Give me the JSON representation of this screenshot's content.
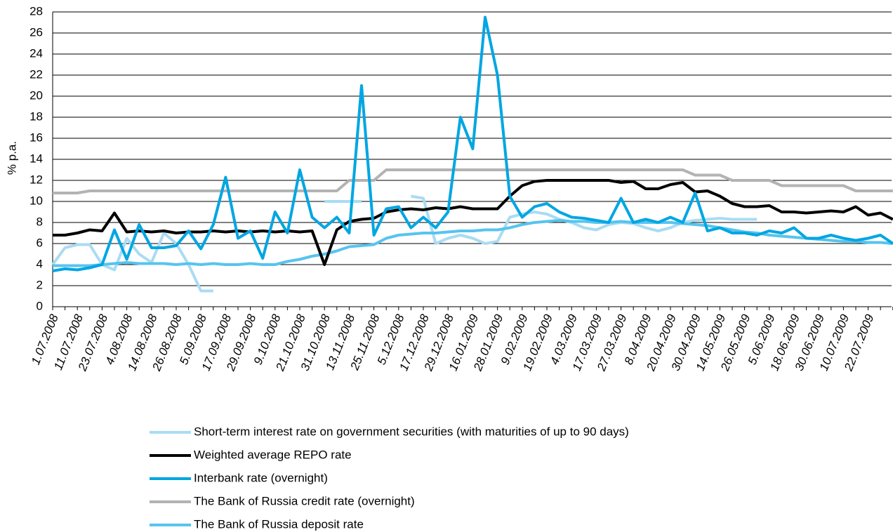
{
  "chart_data": {
    "type": "line",
    "y_label": "% p.a.",
    "categories": [
      "1.07.2008",
      null,
      "11.07.2008",
      null,
      "23.07.2008",
      null,
      "4.08.2008",
      null,
      "14.08.2008",
      null,
      "26.08.2008",
      null,
      "5.09.2008",
      null,
      "17.09.2008",
      null,
      "29.09.2008",
      null,
      "9.10.2008",
      null,
      "21.10.2008",
      null,
      "31.10.2008",
      null,
      "13.11.2008",
      null,
      "25.11.2008",
      null,
      "5.12.2008",
      null,
      "17.12.2008",
      null,
      "29.12.2008",
      null,
      "16.01.2009",
      null,
      "28.01.2009",
      null,
      "9.02.2009",
      null,
      "19.02.2009",
      null,
      "4.03.2009",
      null,
      "17.03.2009",
      null,
      "27.03.2009",
      null,
      "8.04.2009",
      null,
      "20.04.2009",
      null,
      "30.04.2009",
      null,
      "14.05.2009",
      null,
      "26.05.2009",
      null,
      "5.06.2009",
      null,
      "18.06.2009",
      null,
      "30.06.2009",
      null,
      "10.07.2009",
      null,
      "22.07.2009",
      null,
      null
    ],
    "ylim": [
      0,
      28
    ],
    "yticks": [
      0,
      2,
      4,
      6,
      8,
      10,
      12,
      14,
      16,
      18,
      20,
      22,
      24,
      26,
      28
    ],
    "grid": true,
    "series": [
      {
        "name": "Short-term interest rate on government securities (with maturities of up to 90 days)",
        "color": "#a9dcf3",
        "values": [
          4.0,
          5.6,
          5.9,
          5.9,
          4.0,
          3.5,
          6.5,
          5.0,
          4.2,
          7.0,
          6.0,
          4.0,
          1.5,
          1.5,
          null,
          null,
          null,
          null,
          null,
          null,
          null,
          null,
          10.0,
          10.0,
          10.0,
          10.0,
          null,
          null,
          null,
          10.5,
          10.3,
          6.0,
          6.5,
          6.8,
          6.5,
          6.0,
          6.2,
          8.5,
          8.8,
          9.0,
          8.8,
          8.3,
          8.0,
          7.5,
          7.3,
          7.8,
          8.0,
          7.9,
          7.5,
          7.2,
          7.5,
          8.0,
          8.2,
          8.3,
          8.4,
          8.3,
          8.3,
          8.3,
          null,
          null,
          null,
          null,
          null,
          null,
          null,
          null,
          null,
          null,
          null
        ]
      },
      {
        "name": "Weighted average REPO rate",
        "color": "#000000",
        "values": [
          6.8,
          6.8,
          7.0,
          7.3,
          7.2,
          8.9,
          7.1,
          7.2,
          7.1,
          7.2,
          7.0,
          7.1,
          7.1,
          7.2,
          7.1,
          7.2,
          7.1,
          7.2,
          7.1,
          7.2,
          7.1,
          7.2,
          4.0,
          7.3,
          8.1,
          8.3,
          8.4,
          9.0,
          9.2,
          9.3,
          9.2,
          9.4,
          9.3,
          9.5,
          9.3,
          9.3,
          9.3,
          10.5,
          11.5,
          11.9,
          12,
          12,
          12,
          12,
          12,
          12,
          11.8,
          11.9,
          11.2,
          11.2,
          11.6,
          11.8,
          10.9,
          11.0,
          10.5,
          9.8,
          9.5,
          9.5,
          9.6,
          9.0,
          9.0,
          8.9,
          9.0,
          9.1,
          9.0,
          9.5,
          8.7,
          8.9,
          8.3
        ]
      },
      {
        "name": "Interbank rate (overnight)",
        "color": "#00a6e2",
        "values": [
          3.4,
          3.6,
          3.5,
          3.7,
          4.0,
          7.3,
          4.5,
          7.8,
          5.6,
          5.6,
          5.8,
          7.2,
          5.5,
          7.8,
          12.3,
          6.5,
          7.2,
          4.6,
          9.0,
          7.0,
          13.0,
          8.5,
          7.5,
          8.5,
          7.0,
          21.0,
          6.8,
          9.3,
          9.5,
          7.5,
          8.5,
          7.5,
          9.0,
          18.0,
          15.0,
          27.5,
          22.0,
          10.5,
          8.5,
          9.5,
          9.8,
          9.0,
          8.5,
          8.4,
          8.2,
          8.0,
          10.3,
          8.0,
          8.3,
          8.0,
          8.5,
          8.0,
          10.8,
          7.2,
          7.5,
          7.0,
          7.0,
          6.8,
          7.2,
          7.0,
          7.5,
          6.5,
          6.5,
          6.8,
          6.5,
          6.3,
          6.5,
          6.8,
          6.0
        ]
      },
      {
        "name": "The Bank of Russia credit rate (overnight)",
        "color": "#b3b3b3",
        "values": [
          10.8,
          10.8,
          10.8,
          11,
          11,
          11,
          11,
          11,
          11,
          11,
          11,
          11,
          11,
          11,
          11,
          11,
          11,
          11,
          11,
          11,
          11,
          11,
          11,
          11,
          12,
          12,
          12,
          13,
          13,
          13,
          13,
          13,
          13,
          13,
          13,
          13,
          13,
          13,
          13,
          13,
          13,
          13,
          13,
          13,
          13,
          13,
          13,
          13,
          13,
          13,
          13,
          13,
          12.5,
          12.5,
          12.5,
          12,
          12,
          12,
          12,
          11.5,
          11.5,
          11.5,
          11.5,
          11.5,
          11.5,
          11,
          11,
          11,
          11
        ]
      },
      {
        "name": "The Bank of Russia deposit rate",
        "color": "#57c4ee",
        "values": [
          3.9,
          3.9,
          3.9,
          3.9,
          4.0,
          4.1,
          4.2,
          4.1,
          4.1,
          4.1,
          4.0,
          4.1,
          4.0,
          4.1,
          4.0,
          4.0,
          4.1,
          4.0,
          4.0,
          4.3,
          4.5,
          4.8,
          5.0,
          5.3,
          5.7,
          5.8,
          5.9,
          6.5,
          6.8,
          6.9,
          7.0,
          7.0,
          7.1,
          7.2,
          7.2,
          7.3,
          7.3,
          7.5,
          7.8,
          8.0,
          8.1,
          8.2,
          8.1,
          8.1,
          8.0,
          8.0,
          8.1,
          8.0,
          8.0,
          8.0,
          8.0,
          7.9,
          7.8,
          7.7,
          7.5,
          7.3,
          7.1,
          7.0,
          6.8,
          6.7,
          6.6,
          6.5,
          6.4,
          6.3,
          6.2,
          6.2,
          6.1,
          6.1,
          6.0
        ]
      }
    ]
  }
}
